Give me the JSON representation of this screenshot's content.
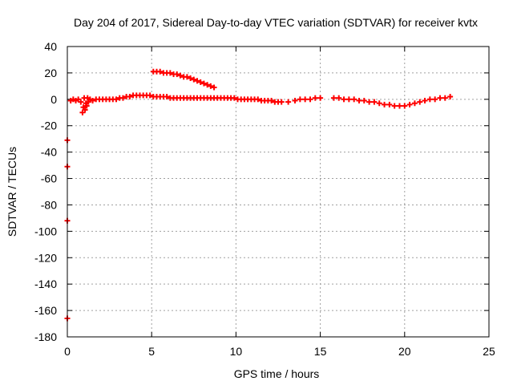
{
  "chart_data": {
    "type": "scatter",
    "title": "Day 204 of 2017, Sidereal Day-to-day VTEC variation (SDTVAR) for receiver kvtx",
    "xlabel": "GPS time / hours",
    "ylabel": "SDTVAR / TECUs",
    "xlim": [
      0,
      25
    ],
    "ylim": [
      -180,
      40
    ],
    "xticks": [
      0,
      5,
      10,
      15,
      20,
      25
    ],
    "yticks": [
      40,
      20,
      0,
      -20,
      -40,
      -60,
      -80,
      -100,
      -120,
      -140,
      -160,
      -180
    ],
    "grid": true,
    "marker": "plus",
    "color": "#ff0000",
    "series": [
      {
        "points": [
          [
            0.0,
            -166
          ],
          [
            0.0,
            -92
          ],
          [
            0.0,
            -51
          ],
          [
            0.0,
            -31
          ],
          [
            0.2,
            -1
          ],
          [
            0.35,
            0
          ],
          [
            0.5,
            -1
          ],
          [
            0.65,
            0
          ],
          [
            0.8,
            -2
          ],
          [
            0.9,
            -10
          ],
          [
            0.95,
            -6
          ],
          [
            1.0,
            1
          ],
          [
            1.05,
            -8
          ],
          [
            1.1,
            -3
          ],
          [
            1.15,
            -5
          ],
          [
            1.2,
            1
          ],
          [
            1.25,
            -2
          ],
          [
            1.35,
            0
          ],
          [
            1.5,
            -1
          ],
          [
            1.7,
            0
          ],
          [
            1.9,
            0
          ],
          [
            2.1,
            0
          ],
          [
            2.3,
            0
          ],
          [
            2.5,
            0
          ],
          [
            2.7,
            0
          ],
          [
            2.9,
            0
          ],
          [
            3.1,
            1
          ],
          [
            3.3,
            1
          ],
          [
            3.5,
            2
          ],
          [
            3.7,
            2
          ],
          [
            3.9,
            3
          ],
          [
            4.1,
            3
          ],
          [
            4.3,
            3
          ],
          [
            4.5,
            3
          ],
          [
            4.7,
            3
          ],
          [
            4.9,
            3
          ],
          [
            5.1,
            2
          ],
          [
            5.3,
            2
          ],
          [
            5.5,
            2
          ],
          [
            5.7,
            2
          ],
          [
            5.9,
            2
          ],
          [
            6.1,
            1
          ],
          [
            6.3,
            1
          ],
          [
            6.5,
            1
          ],
          [
            6.7,
            1
          ],
          [
            6.9,
            1
          ],
          [
            7.1,
            1
          ],
          [
            7.3,
            1
          ],
          [
            7.5,
            1
          ],
          [
            7.7,
            1
          ],
          [
            7.9,
            1
          ],
          [
            8.1,
            1
          ],
          [
            8.3,
            1
          ],
          [
            8.5,
            1
          ],
          [
            8.7,
            1
          ],
          [
            8.9,
            1
          ],
          [
            9.1,
            1
          ],
          [
            9.3,
            1
          ],
          [
            9.5,
            1
          ],
          [
            9.7,
            1
          ],
          [
            9.9,
            1
          ],
          [
            10.1,
            0
          ],
          [
            10.3,
            0
          ],
          [
            10.5,
            0
          ],
          [
            10.7,
            0
          ],
          [
            10.9,
            0
          ],
          [
            11.1,
            0
          ],
          [
            11.3,
            0
          ],
          [
            11.5,
            -1
          ],
          [
            11.7,
            -1
          ],
          [
            11.9,
            -1
          ],
          [
            12.1,
            -1
          ],
          [
            12.3,
            -2
          ],
          [
            12.5,
            -2
          ],
          [
            12.7,
            -2
          ],
          [
            13.1,
            -2
          ],
          [
            13.5,
            -1
          ],
          [
            13.8,
            0
          ],
          [
            14.1,
            0
          ],
          [
            14.4,
            0
          ],
          [
            14.7,
            1
          ],
          [
            15.0,
            1
          ],
          [
            15.8,
            1
          ],
          [
            16.1,
            1
          ],
          [
            16.4,
            0
          ],
          [
            16.7,
            0
          ],
          [
            17.0,
            0
          ],
          [
            17.3,
            -1
          ],
          [
            17.6,
            -1
          ],
          [
            17.9,
            -2
          ],
          [
            18.2,
            -2
          ],
          [
            18.5,
            -3
          ],
          [
            18.8,
            -4
          ],
          [
            19.1,
            -4
          ],
          [
            19.4,
            -5
          ],
          [
            19.7,
            -5
          ],
          [
            20.0,
            -5
          ],
          [
            20.3,
            -4
          ],
          [
            20.6,
            -3
          ],
          [
            20.9,
            -2
          ],
          [
            21.2,
            -1
          ],
          [
            21.5,
            0
          ],
          [
            21.8,
            0
          ],
          [
            22.1,
            1
          ],
          [
            22.4,
            1
          ],
          [
            22.7,
            2
          ]
        ]
      },
      {
        "points": [
          [
            5.1,
            21
          ],
          [
            5.3,
            21
          ],
          [
            5.5,
            21
          ],
          [
            5.7,
            20
          ],
          [
            5.9,
            20
          ],
          [
            6.1,
            20
          ],
          [
            6.3,
            19
          ],
          [
            6.5,
            19
          ],
          [
            6.7,
            18
          ],
          [
            6.9,
            17
          ],
          [
            7.1,
            17
          ],
          [
            7.3,
            16
          ],
          [
            7.5,
            15
          ],
          [
            7.7,
            14
          ],
          [
            7.9,
            13
          ],
          [
            8.1,
            12
          ],
          [
            8.3,
            11
          ],
          [
            8.5,
            10
          ],
          [
            8.7,
            9
          ]
        ]
      }
    ]
  }
}
